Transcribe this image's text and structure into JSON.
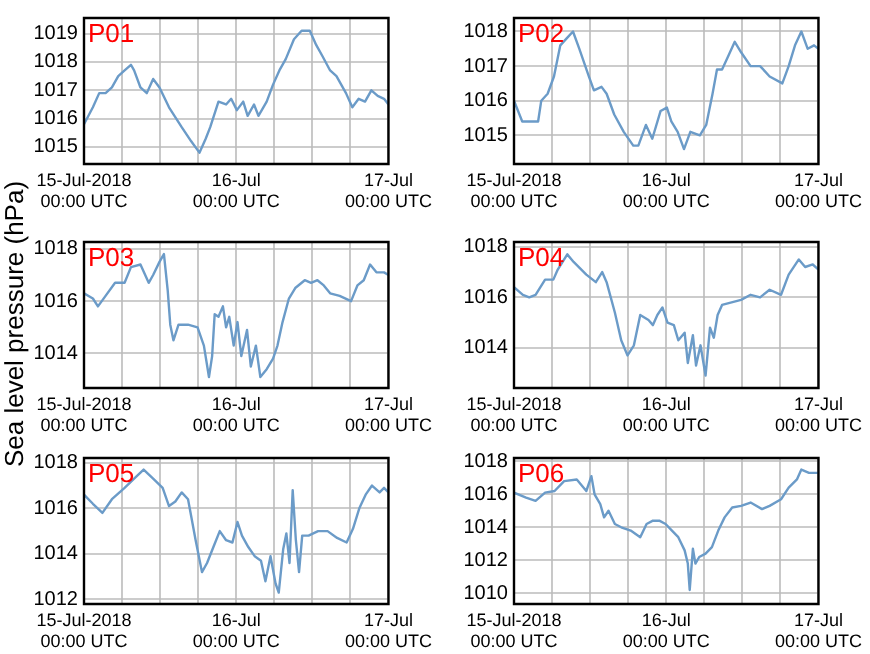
{
  "chart_data": [
    {
      "type": "line",
      "title": "P01",
      "x": [
        "2018-07-15T00:00",
        "2018-07-15T01:24",
        "2018-07-15T02:24",
        "2018-07-15T03:24",
        "2018-07-15T04:24",
        "2018-07-15T05:24",
        "2018-07-15T06:24",
        "2018-07-15T07:24",
        "2018-07-15T07:54",
        "2018-07-15T08:54",
        "2018-07-15T09:54",
        "2018-07-15T10:54",
        "2018-07-15T11:54",
        "2018-07-15T13:24",
        "2018-07-15T15:24",
        "2018-07-15T16:54",
        "2018-07-15T18:12",
        "2018-07-15T19:12",
        "2018-07-15T19:54",
        "2018-07-15T21:12",
        "2018-07-15T22:24",
        "2018-07-15T23:12",
        "2018-07-16T00:06",
        "2018-07-16T01:06",
        "2018-07-16T01:48",
        "2018-07-16T02:48",
        "2018-07-16T03:30",
        "2018-07-16T04:48",
        "2018-07-16T05:48",
        "2018-07-16T06:48",
        "2018-07-16T07:48",
        "2018-07-16T09:06",
        "2018-07-16T10:18",
        "2018-07-16T11:36",
        "2018-07-16T12:36",
        "2018-07-16T13:36",
        "2018-07-16T14:48",
        "2018-07-16T15:48",
        "2018-07-16T17:18",
        "2018-07-16T18:18",
        "2018-07-16T19:18",
        "2018-07-16T20:18",
        "2018-07-16T21:18",
        "2018-07-16T22:18",
        "2018-07-16T23:18",
        "2018-07-17T00:00"
      ],
      "series": [
        {
          "color": "#6b9bc8",
          "values": [
            1015.8,
            1016.4,
            1016.9,
            1016.9,
            1017.1,
            1017.5,
            1017.7,
            1017.9,
            1017.7,
            1017.1,
            1016.9,
            1017.4,
            1017.1,
            1016.4,
            1015.7,
            1015.2,
            1014.8,
            1015.3,
            1015.7,
            1016.6,
            1016.5,
            1016.7,
            1016.3,
            1016.6,
            1016.1,
            1016.5,
            1016.1,
            1016.6,
            1017.2,
            1017.7,
            1018.1,
            1018.8,
            1019.1,
            1019.1,
            1018.6,
            1018.2,
            1017.7,
            1017.5,
            1016.9,
            1016.4,
            1016.7,
            1016.6,
            1017.0,
            1016.8,
            1016.7,
            1016.5
          ]
        }
      ],
      "xlim": [
        "2018-07-15T00:00",
        "2018-07-17T00:00"
      ],
      "xticks": [
        {
          "value": "2018-07-15T00:00",
          "label": "15-Jul-2018\n00:00 UTC"
        },
        {
          "value": "2018-07-15T06:00",
          "label": null
        },
        {
          "value": "2018-07-15T12:00",
          "label": null
        },
        {
          "value": "2018-07-15T18:00",
          "label": null
        },
        {
          "value": "2018-07-16T00:00",
          "label": "16-Jul\n00:00 UTC"
        },
        {
          "value": "2018-07-16T06:00",
          "label": null
        },
        {
          "value": "2018-07-16T12:00",
          "label": null
        },
        {
          "value": "2018-07-16T18:00",
          "label": null
        },
        {
          "value": "2018-07-17T00:00",
          "label": "17-Jul\n00:00 UTC"
        }
      ],
      "ylim": [
        1014.4,
        1019.55
      ],
      "yticks": [
        1015,
        1016,
        1017,
        1018,
        1019
      ],
      "grid": true,
      "marker": "none",
      "line_style": "solid"
    },
    {
      "type": "line",
      "title": "P02",
      "x": [
        "2018-07-15T00:00",
        "2018-07-15T01:18",
        "2018-07-15T02:48",
        "2018-07-15T03:48",
        "2018-07-15T04:18",
        "2018-07-15T05:18",
        "2018-07-15T06:18",
        "2018-07-15T07:18",
        "2018-07-15T08:18",
        "2018-07-15T09:18",
        "2018-07-15T10:18",
        "2018-07-15T11:48",
        "2018-07-15T12:36",
        "2018-07-15T13:48",
        "2018-07-15T14:36",
        "2018-07-15T15:48",
        "2018-07-15T17:18",
        "2018-07-15T18:48",
        "2018-07-15T19:36",
        "2018-07-15T20:48",
        "2018-07-15T21:48",
        "2018-07-15T23:06",
        "2018-07-16T00:06",
        "2018-07-16T00:48",
        "2018-07-16T01:48",
        "2018-07-16T02:48",
        "2018-07-16T03:48",
        "2018-07-16T05:18",
        "2018-07-16T06:18",
        "2018-07-16T07:18",
        "2018-07-16T08:00",
        "2018-07-16T08:48",
        "2018-07-16T09:48",
        "2018-07-16T10:48",
        "2018-07-16T11:48",
        "2018-07-16T13:18",
        "2018-07-16T14:48",
        "2018-07-16T16:18",
        "2018-07-16T18:18",
        "2018-07-16T19:18",
        "2018-07-16T20:18",
        "2018-07-16T21:18",
        "2018-07-16T22:18",
        "2018-07-16T23:18",
        "2018-07-17T00:00"
      ],
      "series": [
        {
          "color": "#6b9bc8",
          "values": [
            1016.0,
            1015.4,
            1015.4,
            1015.4,
            1016.0,
            1016.2,
            1016.7,
            1017.6,
            1017.8,
            1018.0,
            1017.5,
            1016.7,
            1016.3,
            1016.4,
            1016.2,
            1015.6,
            1015.1,
            1014.7,
            1014.7,
            1015.3,
            1014.9,
            1015.7,
            1015.8,
            1015.4,
            1015.1,
            1014.6,
            1015.1,
            1015.0,
            1015.3,
            1016.2,
            1016.9,
            1016.9,
            1017.3,
            1017.7,
            1017.4,
            1017.0,
            1017.0,
            1016.7,
            1016.5,
            1017.0,
            1017.6,
            1018.0,
            1017.5,
            1017.6,
            1017.5
          ]
        }
      ],
      "xlim": [
        "2018-07-15T00:00",
        "2018-07-17T00:00"
      ],
      "xticks": [
        {
          "value": "2018-07-15T00:00",
          "label": "15-Jul-2018\n00:00 UTC"
        },
        {
          "value": "2018-07-15T06:00",
          "label": null
        },
        {
          "value": "2018-07-15T12:00",
          "label": null
        },
        {
          "value": "2018-07-15T18:00",
          "label": null
        },
        {
          "value": "2018-07-16T00:00",
          "label": "16-Jul\n00:00 UTC"
        },
        {
          "value": "2018-07-16T06:00",
          "label": null
        },
        {
          "value": "2018-07-16T12:00",
          "label": null
        },
        {
          "value": "2018-07-16T18:00",
          "label": null
        },
        {
          "value": "2018-07-17T00:00",
          "label": "17-Jul\n00:00 UTC"
        }
      ],
      "ylim": [
        1014.17,
        1018.39
      ],
      "yticks": [
        1015,
        1016,
        1017,
        1018
      ],
      "grid": true,
      "marker": "none",
      "line_style": "solid"
    },
    {
      "type": "line",
      "title": "P03",
      "ylabel": "Sea level pressure (hPa)",
      "x": [
        "2018-07-15T00:00",
        "2018-07-15T01:24",
        "2018-07-15T02:12",
        "2018-07-15T03:24",
        "2018-07-15T04:54",
        "2018-07-15T06:24",
        "2018-07-15T07:24",
        "2018-07-15T08:54",
        "2018-07-15T10:12",
        "2018-07-15T10:54",
        "2018-07-15T11:54",
        "2018-07-15T12:36",
        "2018-07-15T13:12",
        "2018-07-15T13:36",
        "2018-07-15T14:06",
        "2018-07-15T14:54",
        "2018-07-15T16:24",
        "2018-07-15T17:54",
        "2018-07-15T18:54",
        "2018-07-15T19:42",
        "2018-07-15T20:12",
        "2018-07-15T20:36",
        "2018-07-15T21:12",
        "2018-07-15T21:54",
        "2018-07-15T22:24",
        "2018-07-15T22:54",
        "2018-07-15T23:36",
        "2018-07-16T00:12",
        "2018-07-16T00:48",
        "2018-07-16T01:42",
        "2018-07-16T02:18",
        "2018-07-16T03:06",
        "2018-07-16T03:48",
        "2018-07-16T04:48",
        "2018-07-16T05:48",
        "2018-07-16T06:30",
        "2018-07-16T07:18",
        "2018-07-16T08:18",
        "2018-07-16T09:18",
        "2018-07-16T10:48",
        "2018-07-16T11:48",
        "2018-07-16T12:48",
        "2018-07-16T13:48",
        "2018-07-16T14:48",
        "2018-07-16T16:18",
        "2018-07-16T18:06",
        "2018-07-16T19:06",
        "2018-07-16T20:06",
        "2018-07-16T21:06",
        "2018-07-16T22:06",
        "2018-07-16T23:18",
        "2018-07-17T00:00"
      ],
      "series": [
        {
          "color": "#6b9bc8",
          "values": [
            1016.3,
            1016.1,
            1015.8,
            1016.2,
            1016.7,
            1016.7,
            1017.3,
            1017.4,
            1016.7,
            1017.0,
            1017.5,
            1017.8,
            1016.4,
            1015.1,
            1014.5,
            1015.1,
            1015.1,
            1015.0,
            1014.3,
            1013.1,
            1013.9,
            1015.5,
            1015.4,
            1015.8,
            1015.0,
            1015.4,
            1014.3,
            1015.2,
            1013.9,
            1014.9,
            1013.5,
            1014.3,
            1013.1,
            1013.4,
            1013.8,
            1014.3,
            1015.2,
            1016.1,
            1016.5,
            1016.8,
            1016.7,
            1016.8,
            1016.6,
            1016.3,
            1016.2,
            1016.0,
            1016.6,
            1016.8,
            1017.4,
            1017.1,
            1017.1,
            1017.0
          ]
        }
      ],
      "xlim": [
        "2018-07-15T00:00",
        "2018-07-17T00:00"
      ],
      "xticks": [
        {
          "value": "2018-07-15T00:00",
          "label": "15-Jul-2018\n00:00 UTC"
        },
        {
          "value": "2018-07-15T06:00",
          "label": null
        },
        {
          "value": "2018-07-15T12:00",
          "label": null
        },
        {
          "value": "2018-07-15T18:00",
          "label": null
        },
        {
          "value": "2018-07-16T00:00",
          "label": "16-Jul\n00:00 UTC"
        },
        {
          "value": "2018-07-16T06:00",
          "label": null
        },
        {
          "value": "2018-07-16T12:00",
          "label": null
        },
        {
          "value": "2018-07-16T18:00",
          "label": null
        },
        {
          "value": "2018-07-17T00:00",
          "label": "17-Jul\n00:00 UTC"
        }
      ],
      "ylim": [
        1012.68,
        1018.26
      ],
      "yticks": [
        1014,
        1016,
        1018
      ],
      "grid": true,
      "marker": "none",
      "line_style": "solid"
    },
    {
      "type": "line",
      "title": "P04",
      "x": [
        "2018-07-15T00:00",
        "2018-07-15T01:24",
        "2018-07-15T02:24",
        "2018-07-15T03:24",
        "2018-07-15T04:54",
        "2018-07-15T06:12",
        "2018-07-15T06:54",
        "2018-07-15T08:24",
        "2018-07-15T09:24",
        "2018-07-15T11:24",
        "2018-07-15T12:54",
        "2018-07-15T13:54",
        "2018-07-15T14:36",
        "2018-07-15T15:54",
        "2018-07-15T16:54",
        "2018-07-15T17:54",
        "2018-07-15T18:54",
        "2018-07-15T19:54",
        "2018-07-15T21:12",
        "2018-07-15T21:54",
        "2018-07-15T22:36",
        "2018-07-15T23:24",
        "2018-07-16T00:12",
        "2018-07-16T01:12",
        "2018-07-16T01:54",
        "2018-07-16T02:54",
        "2018-07-16T03:24",
        "2018-07-16T04:12",
        "2018-07-16T04:42",
        "2018-07-16T05:24",
        "2018-07-16T06:12",
        "2018-07-16T06:54",
        "2018-07-16T07:30",
        "2018-07-16T08:06",
        "2018-07-16T08:48",
        "2018-07-16T10:18",
        "2018-07-16T11:48",
        "2018-07-16T13:18",
        "2018-07-16T14:48",
        "2018-07-16T16:18",
        "2018-07-16T18:06",
        "2018-07-16T19:18",
        "2018-07-16T20:54",
        "2018-07-16T21:54",
        "2018-07-16T23:06",
        "2018-07-17T00:00"
      ],
      "series": [
        {
          "color": "#6b9bc8",
          "values": [
            1016.4,
            1016.1,
            1016.0,
            1016.1,
            1016.7,
            1016.7,
            1017.1,
            1017.7,
            1017.4,
            1016.9,
            1016.6,
            1017.0,
            1016.6,
            1015.4,
            1014.3,
            1013.7,
            1014.1,
            1015.3,
            1015.1,
            1014.9,
            1015.3,
            1015.6,
            1015.0,
            1014.9,
            1014.3,
            1014.6,
            1013.4,
            1014.5,
            1013.3,
            1014.1,
            1012.9,
            1014.8,
            1014.4,
            1015.3,
            1015.7,
            1015.8,
            1015.9,
            1016.1,
            1016.0,
            1016.3,
            1016.1,
            1016.9,
            1017.5,
            1017.2,
            1017.3,
            1017.1
          ]
        }
      ],
      "xlim": [
        "2018-07-15T00:00",
        "2018-07-17T00:00"
      ],
      "xticks": [
        {
          "value": "2018-07-15T00:00",
          "label": "15-Jul-2018\n00:00 UTC"
        },
        {
          "value": "2018-07-15T06:00",
          "label": null
        },
        {
          "value": "2018-07-15T12:00",
          "label": null
        },
        {
          "value": "2018-07-15T18:00",
          "label": null
        },
        {
          "value": "2018-07-16T00:00",
          "label": "16-Jul\n00:00 UTC"
        },
        {
          "value": "2018-07-16T06:00",
          "label": null
        },
        {
          "value": "2018-07-16T12:00",
          "label": null
        },
        {
          "value": "2018-07-16T18:00",
          "label": null
        },
        {
          "value": "2018-07-17T00:00",
          "label": "17-Jul\n00:00 UTC"
        }
      ],
      "ylim": [
        1012.41,
        1018.19
      ],
      "yticks": [
        1014,
        1016,
        1018
      ],
      "grid": true,
      "marker": "none",
      "line_style": "solid"
    },
    {
      "type": "line",
      "title": "P05",
      "x": [
        "2018-07-15T00:00",
        "2018-07-15T01:24",
        "2018-07-15T02:54",
        "2018-07-15T04:24",
        "2018-07-15T06:24",
        "2018-07-15T07:54",
        "2018-07-15T09:24",
        "2018-07-15T10:54",
        "2018-07-15T12:24",
        "2018-07-15T13:24",
        "2018-07-15T14:24",
        "2018-07-15T15:24",
        "2018-07-15T16:24",
        "2018-07-15T17:36",
        "2018-07-15T18:36",
        "2018-07-15T19:24",
        "2018-07-15T20:24",
        "2018-07-15T21:24",
        "2018-07-15T22:24",
        "2018-07-15T23:24",
        "2018-07-16T00:12",
        "2018-07-16T00:54",
        "2018-07-16T01:54",
        "2018-07-16T02:54",
        "2018-07-16T03:54",
        "2018-07-16T04:36",
        "2018-07-16T05:24",
        "2018-07-16T06:12",
        "2018-07-16T06:42",
        "2018-07-16T07:24",
        "2018-07-16T07:54",
        "2018-07-16T08:24",
        "2018-07-16T08:54",
        "2018-07-16T09:24",
        "2018-07-16T09:54",
        "2018-07-16T10:24",
        "2018-07-16T11:24",
        "2018-07-16T12:54",
        "2018-07-16T14:24",
        "2018-07-16T15:54",
        "2018-07-16T17:24",
        "2018-07-16T18:24",
        "2018-07-16T19:24",
        "2018-07-16T20:24",
        "2018-07-16T21:24",
        "2018-07-16T22:36",
        "2018-07-16T23:18",
        "2018-07-17T00:00"
      ],
      "series": [
        {
          "color": "#6b9bc8",
          "values": [
            1016.6,
            1016.2,
            1015.8,
            1016.4,
            1016.9,
            1017.3,
            1017.7,
            1017.3,
            1016.9,
            1016.1,
            1016.3,
            1016.7,
            1016.4,
            1014.6,
            1013.2,
            1013.6,
            1014.3,
            1015.0,
            1014.6,
            1014.5,
            1015.4,
            1014.8,
            1014.3,
            1013.9,
            1013.7,
            1012.8,
            1013.9,
            1012.7,
            1012.3,
            1014.2,
            1014.9,
            1013.6,
            1016.8,
            1014.6,
            1013.2,
            1014.8,
            1014.8,
            1015.0,
            1015.0,
            1014.7,
            1014.5,
            1015.1,
            1016.0,
            1016.6,
            1017.0,
            1016.7,
            1016.9,
            1016.7
          ]
        }
      ],
      "xlim": [
        "2018-07-15T00:00",
        "2018-07-17T00:00"
      ],
      "xticks": [
        {
          "value": "2018-07-15T00:00",
          "label": "15-Jul-2018\n00:00 UTC"
        },
        {
          "value": "2018-07-15T06:00",
          "label": null
        },
        {
          "value": "2018-07-15T12:00",
          "label": null
        },
        {
          "value": "2018-07-15T18:00",
          "label": null
        },
        {
          "value": "2018-07-16T00:00",
          "label": "16-Jul\n00:00 UTC"
        },
        {
          "value": "2018-07-16T06:00",
          "label": null
        },
        {
          "value": "2018-07-16T12:00",
          "label": null
        },
        {
          "value": "2018-07-16T18:00",
          "label": null
        },
        {
          "value": "2018-07-17T00:00",
          "label": "17-Jul\n00:00 UTC"
        }
      ],
      "ylim": [
        1011.8,
        1018.21
      ],
      "yticks": [
        1012,
        1014,
        1016,
        1018
      ],
      "grid": true,
      "marker": "none",
      "line_style": "solid"
    },
    {
      "type": "line",
      "title": "P06",
      "x": [
        "2018-07-15T00:00",
        "2018-07-15T01:54",
        "2018-07-15T03:24",
        "2018-07-15T04:54",
        "2018-07-15T06:24",
        "2018-07-15T07:54",
        "2018-07-15T09:54",
        "2018-07-15T11:24",
        "2018-07-15T12:12",
        "2018-07-15T12:42",
        "2018-07-15T13:36",
        "2018-07-15T14:12",
        "2018-07-15T14:54",
        "2018-07-15T15:54",
        "2018-07-15T16:54",
        "2018-07-15T18:24",
        "2018-07-15T19:54",
        "2018-07-15T20:54",
        "2018-07-15T21:54",
        "2018-07-15T22:54",
        "2018-07-15T23:54",
        "2018-07-16T00:54",
        "2018-07-16T01:54",
        "2018-07-16T02:54",
        "2018-07-16T03:24",
        "2018-07-16T03:42",
        "2018-07-16T04:12",
        "2018-07-16T04:36",
        "2018-07-16T05:12",
        "2018-07-16T06:12",
        "2018-07-16T07:12",
        "2018-07-16T08:12",
        "2018-07-16T09:12",
        "2018-07-16T10:24",
        "2018-07-16T11:48",
        "2018-07-16T13:18",
        "2018-07-16T15:06",
        "2018-07-16T16:18",
        "2018-07-16T18:06",
        "2018-07-16T19:18",
        "2018-07-16T20:36",
        "2018-07-16T21:18",
        "2018-07-16T22:30",
        "2018-07-17T00:00"
      ],
      "series": [
        {
          "color": "#6b9bc8",
          "values": [
            1016.1,
            1015.8,
            1015.6,
            1016.1,
            1016.2,
            1016.8,
            1016.9,
            1016.2,
            1017.1,
            1016.0,
            1015.4,
            1014.6,
            1015.0,
            1014.2,
            1014.0,
            1013.8,
            1013.4,
            1014.2,
            1014.4,
            1014.4,
            1014.2,
            1013.8,
            1013.4,
            1012.6,
            1011.8,
            1010.2,
            1012.7,
            1011.8,
            1012.2,
            1012.4,
            1012.8,
            1013.8,
            1014.6,
            1015.2,
            1015.3,
            1015.5,
            1015.1,
            1015.3,
            1015.7,
            1016.4,
            1016.9,
            1017.5,
            1017.3,
            1017.3
          ]
        }
      ],
      "xlim": [
        "2018-07-15T00:00",
        "2018-07-17T00:00"
      ],
      "xticks": [
        {
          "value": "2018-07-15T00:00",
          "label": "15-Jul-2018\n00:00 UTC"
        },
        {
          "value": "2018-07-15T06:00",
          "label": null
        },
        {
          "value": "2018-07-15T12:00",
          "label": null
        },
        {
          "value": "2018-07-15T18:00",
          "label": null
        },
        {
          "value": "2018-07-16T00:00",
          "label": "16-Jul\n00:00 UTC"
        },
        {
          "value": "2018-07-16T06:00",
          "label": null
        },
        {
          "value": "2018-07-16T12:00",
          "label": null
        },
        {
          "value": "2018-07-16T18:00",
          "label": null
        },
        {
          "value": "2018-07-17T00:00",
          "label": "17-Jul\n00:00 UTC"
        }
      ],
      "ylim": [
        1009.35,
        1018.2
      ],
      "yticks": [
        1010,
        1012,
        1014,
        1016,
        1018
      ],
      "grid": true,
      "marker": "none",
      "line_style": "solid"
    }
  ]
}
